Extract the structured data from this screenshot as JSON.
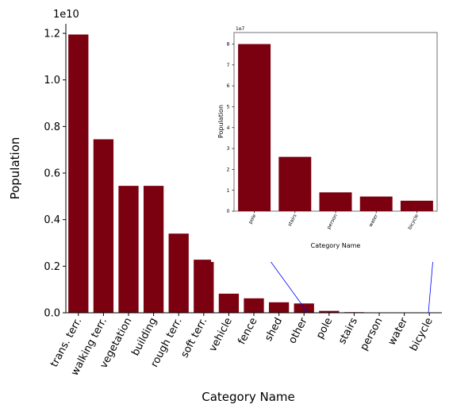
{
  "colors": {
    "bar": "#7b0010",
    "axis": "#000000",
    "inset_frame": "#888888",
    "zoom_line": "#0000ff"
  },
  "chart_data": [
    {
      "type": "bar",
      "role": "main",
      "xlabel": "Category Name",
      "ylabel": "Population",
      "offset_label": "1e10",
      "categories": [
        "trans. terr.",
        "walking terr.",
        "vegetation",
        "building",
        "rough terr.",
        "soft terr.",
        "vehicle",
        "fence",
        "shed",
        "other",
        "pole",
        "stairs",
        "person",
        "water",
        "bicycle"
      ],
      "values": [
        1.195,
        0.745,
        0.545,
        0.545,
        0.34,
        0.228,
        0.082,
        0.062,
        0.045,
        0.04,
        0.008,
        0.0026,
        0.0009,
        0.0007,
        0.0005
      ],
      "yticks": [
        "0.0",
        "0.2",
        "0.4",
        "0.6",
        "0.8",
        "1.0",
        "1.2"
      ],
      "ylim": [
        0,
        1.2
      ],
      "grid": false
    },
    {
      "type": "bar",
      "role": "inset",
      "xlabel": "Category Name",
      "ylabel": "Population",
      "offset_label": "1e7",
      "categories": [
        "pole",
        "stairs",
        "person",
        "water",
        "bicycle"
      ],
      "values": [
        8.0,
        2.6,
        0.9,
        0.7,
        0.5
      ],
      "yticks": [
        "0",
        "1",
        "2",
        "3",
        "4",
        "5",
        "6",
        "7",
        "8"
      ],
      "ylim": [
        0,
        8.4
      ],
      "grid": false
    }
  ]
}
